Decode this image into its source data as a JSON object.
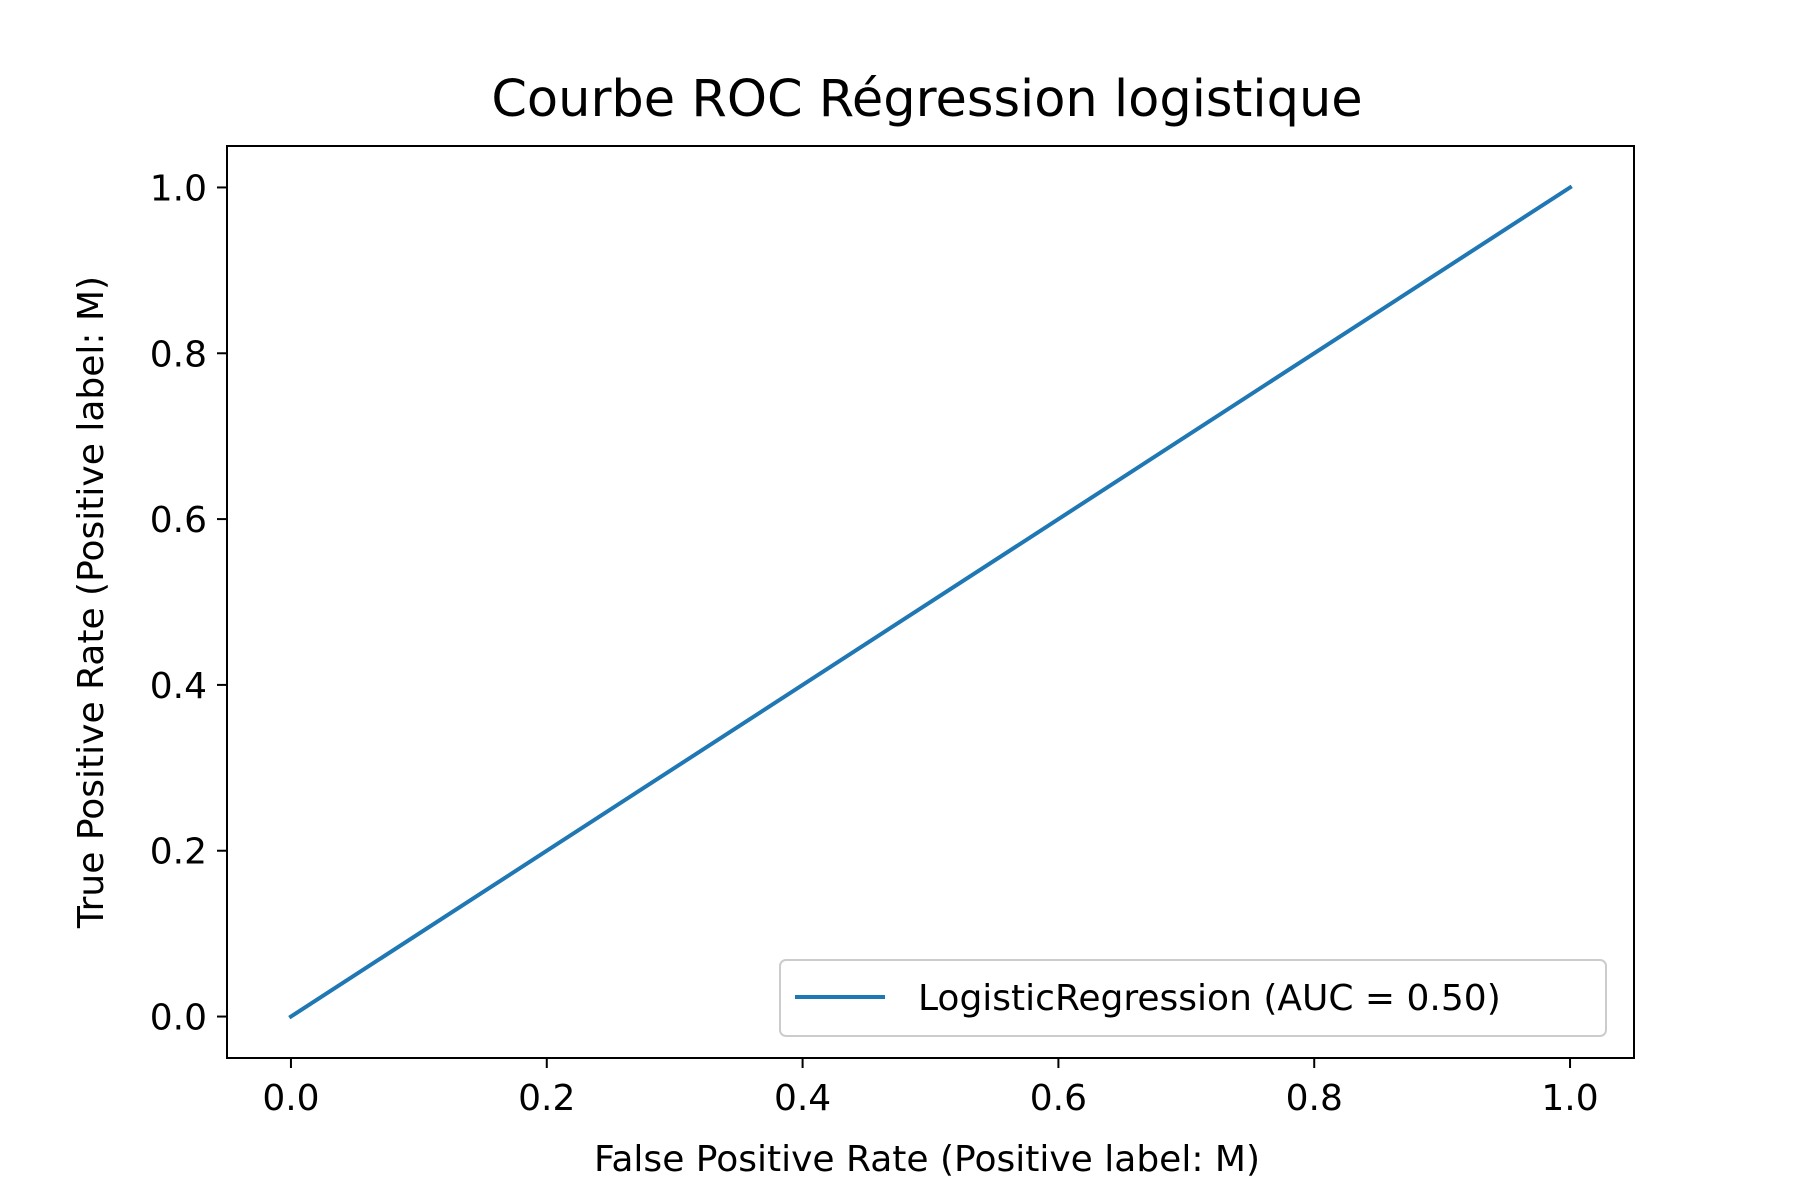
{
  "chart_data": {
    "type": "line",
    "title": "Courbe ROC Régression logistique",
    "xlabel": "False Positive Rate (Positive label: M)",
    "ylabel": "True Positive Rate (Positive label: M)",
    "xlim": [
      -0.05,
      1.05
    ],
    "ylim": [
      -0.05,
      1.05
    ],
    "xticks": [
      0.0,
      0.2,
      0.4,
      0.6,
      0.8,
      1.0
    ],
    "yticks": [
      0.0,
      0.2,
      0.4,
      0.6,
      0.8,
      1.0
    ],
    "xtick_labels": [
      "0.0",
      "0.2",
      "0.4",
      "0.6",
      "0.8",
      "1.0"
    ],
    "ytick_labels": [
      "0.0",
      "0.2",
      "0.4",
      "0.6",
      "0.8",
      "1.0"
    ],
    "grid": false,
    "legend_position": "lower-right",
    "series": [
      {
        "name": "LogisticRegression (AUC = 0.50)",
        "color": "#1f77b4",
        "x": [
          0.0,
          1.0
        ],
        "y": [
          0.0,
          1.0
        ]
      }
    ]
  }
}
